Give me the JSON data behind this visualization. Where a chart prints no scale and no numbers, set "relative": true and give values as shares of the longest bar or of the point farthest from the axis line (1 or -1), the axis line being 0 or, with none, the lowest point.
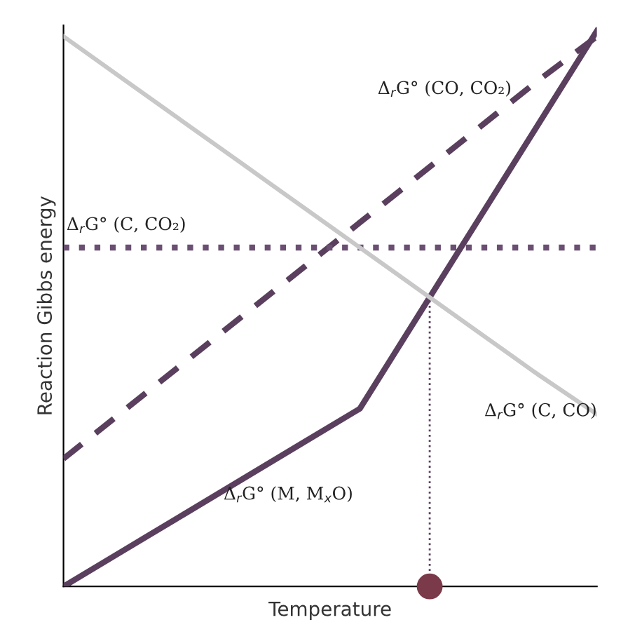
{
  "chart_data": {
    "type": "line",
    "relative": true,
    "xlabel": "Temperature",
    "ylabel": "Reaction Gibbs energy",
    "categories": [
      null,
      null,
      null,
      null,
      null,
      null,
      null,
      null,
      null,
      null
    ],
    "series": [
      {
        "name": "Δ$_{r}$G° (CO, CO₂)",
        "color": "#5a3f5e",
        "line_style": "dashed",
        "values": [
          0.23,
          0.315,
          0.4,
          0.485,
          0.57,
          0.655,
          0.74,
          0.825,
          0.91,
          0.99
        ]
      },
      {
        "name": "Δ$_{r}$G° (C, CO₂)",
        "color": "#6a4f72",
        "line_style": "dotted",
        "values": [
          0.61,
          0.61,
          0.61,
          0.61,
          0.61,
          0.61,
          0.61,
          0.61,
          0.61,
          0.61
        ]
      },
      {
        "name": "Δ$_{r}$G° (M, M$_{x}$O)",
        "color": "#5a3f5e",
        "line_style": "solid",
        "values": [
          0,
          0.064,
          0.128,
          0.192,
          0.256,
          0.32,
          0.49,
          0.66,
          0.83,
          1.0
        ]
      },
      {
        "name": "Δ$_{r}$G° (C, CO)",
        "color": "#c8c8c8",
        "line_style": "solid",
        "values": [
          0.99,
          0.914,
          0.838,
          0.762,
          0.686,
          0.61,
          0.534,
          0.458,
          0.382,
          0.31
        ]
      }
    ],
    "grid": false,
    "legend": false
  }
}
